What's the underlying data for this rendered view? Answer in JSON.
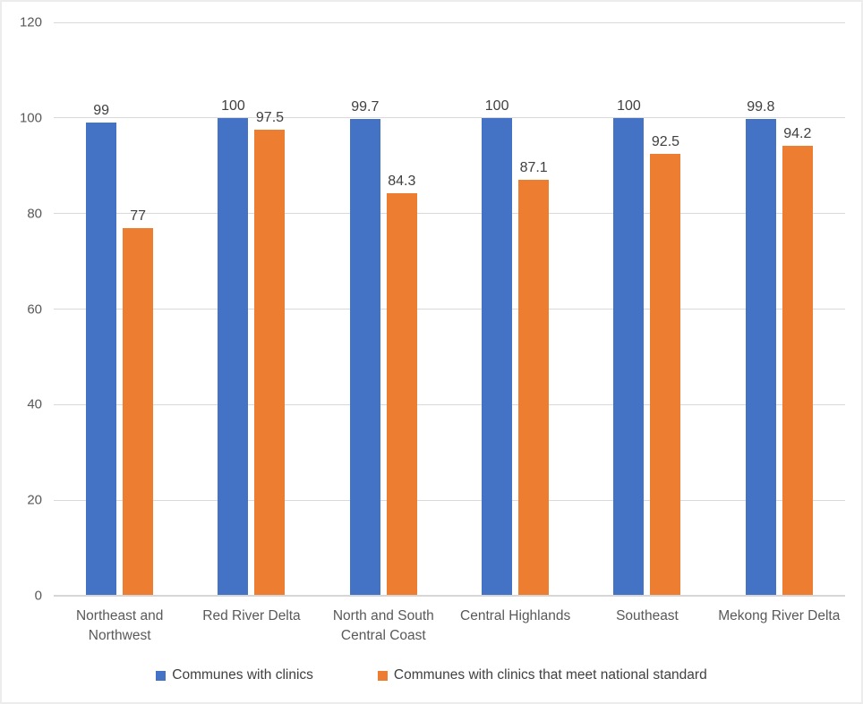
{
  "chart_data": {
    "type": "bar",
    "title": "",
    "categories": [
      "Northeast and Northwest",
      "Red River Delta",
      "North and South Central Coast",
      "Central Highlands",
      "Southeast",
      "Mekong River Delta"
    ],
    "series": [
      {
        "name": "Communes with clinics",
        "color": "#4472C4",
        "values": [
          99,
          100,
          99.7,
          100,
          100,
          99.8
        ],
        "labels": [
          "99",
          "100",
          "99.7",
          "100",
          "100",
          "99.8"
        ]
      },
      {
        "name": "Communes with clinics that meet national standard",
        "color": "#ED7D31",
        "values": [
          77,
          97.5,
          84.3,
          87.1,
          92.5,
          94.2
        ],
        "labels": [
          "77",
          "97.5",
          "84.3",
          "87.1",
          "92.5",
          "94.2"
        ]
      }
    ],
    "xlabel": "",
    "ylabel": "",
    "ylim": [
      0,
      120
    ],
    "yticks": [
      0,
      20,
      40,
      60,
      80,
      100,
      120
    ],
    "grid": "horizontal",
    "gridline_color": "#D9D9D9",
    "axis_text_color": "#595959",
    "data_label_color": "#404040",
    "legend_position": "bottom",
    "data_labels": true
  }
}
